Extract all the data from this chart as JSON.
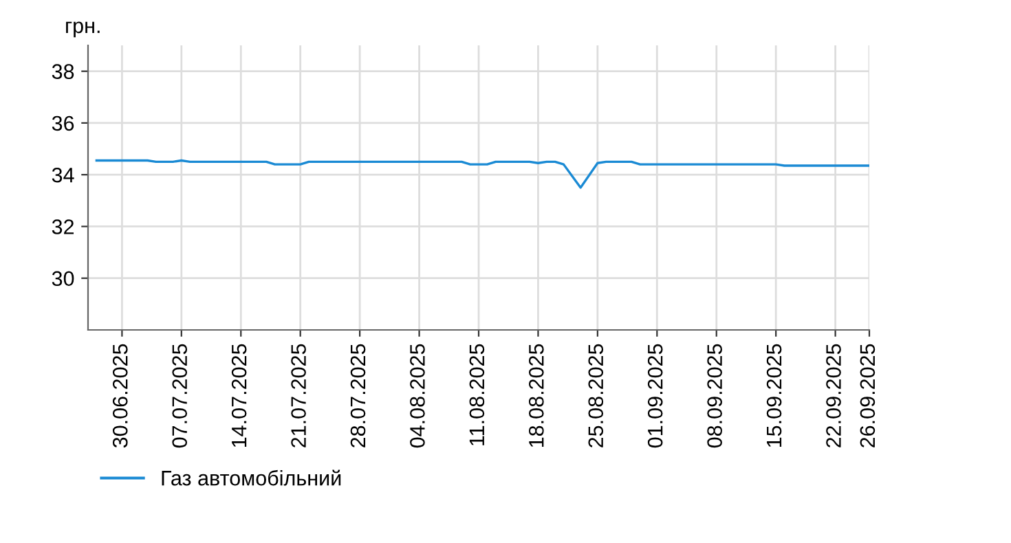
{
  "chart_data": {
    "type": "line",
    "ylabel": "грн.",
    "x": [
      "2025-06-27",
      "2025-07-03",
      "2025-07-04",
      "2025-07-06",
      "2025-07-07",
      "2025-07-08",
      "2025-07-17",
      "2025-07-18",
      "2025-07-21",
      "2025-07-22",
      "2025-08-09",
      "2025-08-10",
      "2025-08-12",
      "2025-08-13",
      "2025-08-17",
      "2025-08-18",
      "2025-08-19",
      "2025-08-20",
      "2025-08-21",
      "2025-08-23",
      "2025-08-25",
      "2025-08-26",
      "2025-08-29",
      "2025-08-30",
      "2025-09-15",
      "2025-09-16",
      "2025-09-26"
    ],
    "series": [
      {
        "name": "Газ автомобільний",
        "color": "#1a8ad4",
        "values": [
          34.55,
          34.55,
          34.5,
          34.5,
          34.55,
          34.5,
          34.5,
          34.4,
          34.4,
          34.5,
          34.5,
          34.4,
          34.4,
          34.5,
          34.5,
          34.45,
          34.5,
          34.5,
          34.4,
          33.5,
          34.45,
          34.5,
          34.5,
          34.4,
          34.4,
          34.35,
          34.35
        ]
      }
    ],
    "xlim": [
      "2025-06-26",
      "2025-09-26"
    ],
    "xticks": [
      {
        "value": "2025-06-30",
        "label": "30.06.2025"
      },
      {
        "value": "2025-07-07",
        "label": "07.07.2025"
      },
      {
        "value": "2025-07-14",
        "label": "14.07.2025"
      },
      {
        "value": "2025-07-21",
        "label": "21.07.2025"
      },
      {
        "value": "2025-07-28",
        "label": "28.07.2025"
      },
      {
        "value": "2025-08-04",
        "label": "04.08.2025"
      },
      {
        "value": "2025-08-11",
        "label": "11.08.2025"
      },
      {
        "value": "2025-08-18",
        "label": "18.08.2025"
      },
      {
        "value": "2025-08-25",
        "label": "25.08.2025"
      },
      {
        "value": "2025-09-01",
        "label": "01.09.2025"
      },
      {
        "value": "2025-09-08",
        "label": "08.09.2025"
      },
      {
        "value": "2025-09-15",
        "label": "15.09.2025"
      },
      {
        "value": "2025-09-22",
        "label": "22.09.2025"
      },
      {
        "value": "2025-09-26",
        "label": "26.09.2025"
      }
    ],
    "ylim": [
      28,
      39
    ],
    "yticks": [
      30,
      32,
      34,
      36,
      38
    ],
    "grid": true,
    "legend": "bottom left",
    "marker": "none",
    "line_style": "solid"
  }
}
